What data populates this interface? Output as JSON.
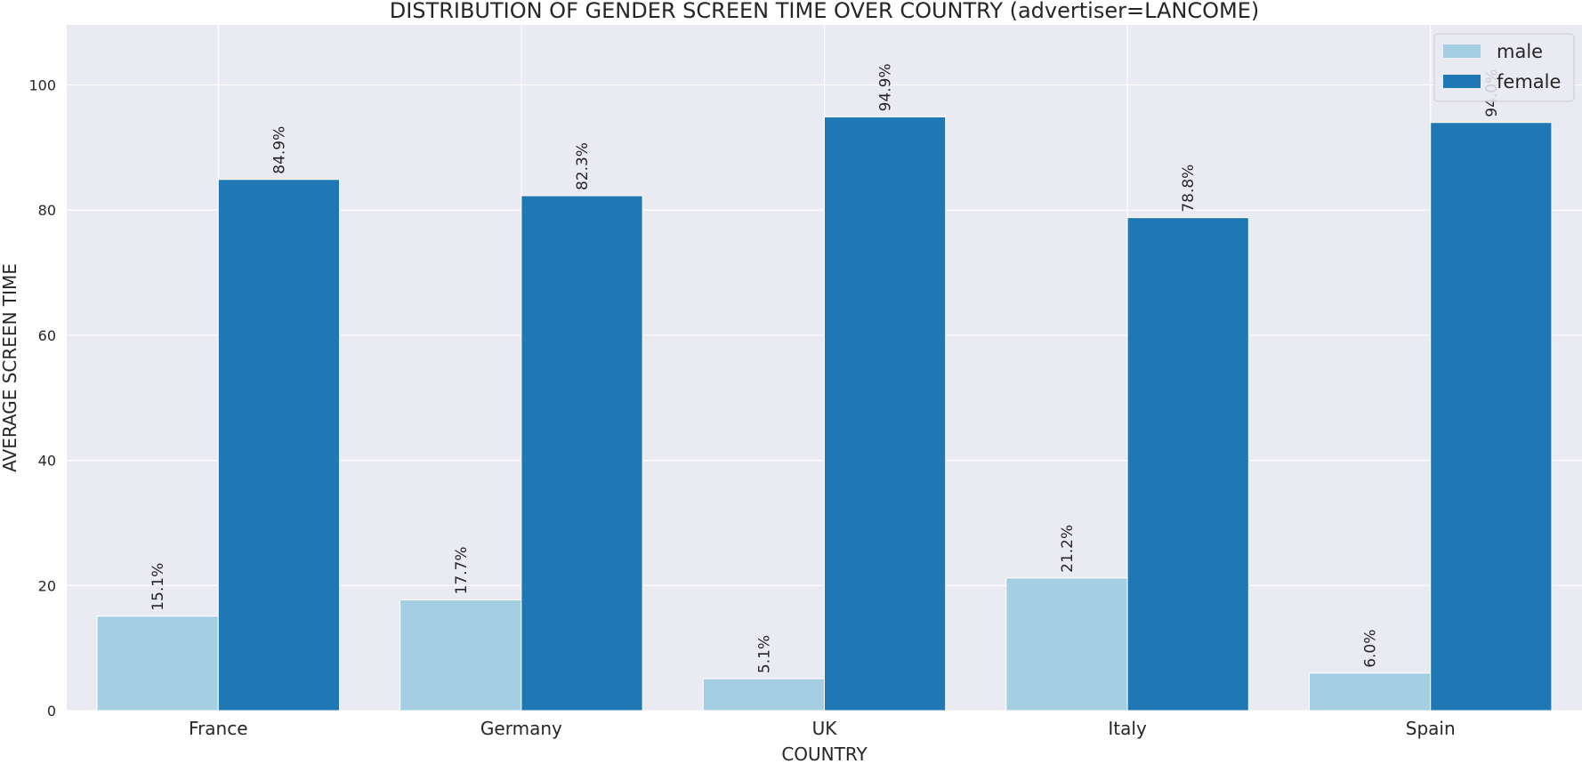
{
  "chart_data": {
    "type": "bar",
    "title": "DISTRIBUTION OF GENDER SCREEN TIME OVER COUNTRY (advertiser=LANCOME)",
    "xlabel": "COUNTRY",
    "ylabel": "AVERAGE SCREEN TIME",
    "categories": [
      "France",
      "Germany",
      "UK",
      "Italy",
      "Spain"
    ],
    "series": [
      {
        "name": "male",
        "color": "#a6cee3",
        "values": [
          15.1,
          17.7,
          5.1,
          21.2,
          6.0
        ],
        "labels": [
          "15.1%",
          "17.7%",
          "5.1%",
          "21.2%",
          "6.0%"
        ]
      },
      {
        "name": "female",
        "color": "#1f78b4",
        "values": [
          84.9,
          82.3,
          94.9,
          78.8,
          94.0
        ],
        "labels": [
          "84.9%",
          "82.3%",
          "94.9%",
          "78.8%",
          "94.0%"
        ]
      }
    ],
    "ylim": [
      0,
      109.6
    ],
    "yticks": [
      0,
      20,
      40,
      60,
      80,
      100
    ],
    "grid": true,
    "legend_position": "top-right",
    "background": "#eaeaf2"
  }
}
